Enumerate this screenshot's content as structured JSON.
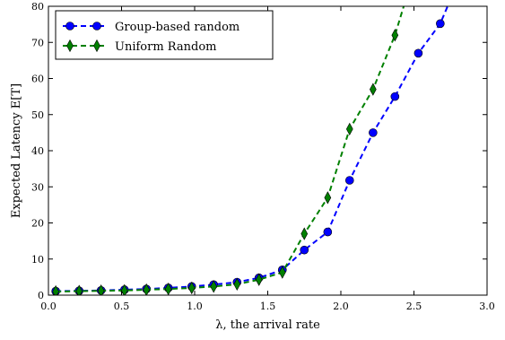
{
  "chart_data": {
    "type": "line",
    "xlabel": "λ, the arrival rate",
    "ylabel": "Expected Latency E[T]",
    "xlim": [
      0.0,
      3.0
    ],
    "ylim": [
      0,
      80
    ],
    "xticks": [
      "0.0",
      "0.5",
      "1.0",
      "1.5",
      "2.0",
      "2.5",
      "3.0"
    ],
    "yticks": [
      "0",
      "10",
      "20",
      "30",
      "40",
      "50",
      "60",
      "70",
      "80"
    ],
    "legend_position": "top-left",
    "grid": false,
    "series": [
      {
        "name": "Group-based random",
        "color": "#0000ff",
        "marker": "circle",
        "line_style": "dashed",
        "x": [
          0.05,
          0.21,
          0.36,
          0.52,
          0.67,
          0.82,
          0.98,
          1.13,
          1.29,
          1.44,
          1.6,
          1.75,
          1.91,
          2.06,
          2.22,
          2.37,
          2.53,
          2.68
        ],
        "y": [
          1.1,
          1.2,
          1.3,
          1.5,
          1.7,
          2.0,
          2.4,
          2.9,
          3.6,
          4.8,
          7.0,
          12.5,
          17.5,
          31.8,
          45.0,
          55.0,
          67.0,
          75.2
        ],
        "line_x": [
          0.05,
          0.21,
          0.36,
          0.52,
          0.67,
          0.82,
          0.98,
          1.13,
          1.29,
          1.44,
          1.6,
          1.75,
          1.91,
          2.06,
          2.22,
          2.37,
          2.53,
          2.68,
          2.73
        ],
        "line_y": [
          1.1,
          1.2,
          1.3,
          1.5,
          1.7,
          2.0,
          2.4,
          2.9,
          3.6,
          4.8,
          7.0,
          12.5,
          17.5,
          31.8,
          45.0,
          55.0,
          67.0,
          75.2,
          80.0
        ]
      },
      {
        "name": "Uniform Random",
        "color": "#008000",
        "marker": "thin_diamond",
        "line_style": "dashed",
        "x": [
          0.05,
          0.21,
          0.36,
          0.52,
          0.67,
          0.82,
          0.98,
          1.13,
          1.29,
          1.44,
          1.6,
          1.75,
          1.91,
          2.06,
          2.22,
          2.37
        ],
        "y": [
          1.0,
          1.1,
          1.2,
          1.3,
          1.5,
          1.7,
          2.0,
          2.4,
          3.0,
          4.3,
          6.3,
          17.0,
          27.0,
          46.0,
          57.0,
          72.0
        ],
        "line_x": [
          0.05,
          0.21,
          0.36,
          0.52,
          0.67,
          0.82,
          0.98,
          1.13,
          1.29,
          1.44,
          1.6,
          1.75,
          1.91,
          2.06,
          2.22,
          2.37,
          2.43
        ],
        "line_y": [
          1.0,
          1.1,
          1.2,
          1.3,
          1.5,
          1.7,
          2.0,
          2.4,
          3.0,
          4.3,
          6.3,
          17.0,
          27.0,
          46.0,
          57.0,
          72.0,
          80.0
        ]
      }
    ]
  }
}
